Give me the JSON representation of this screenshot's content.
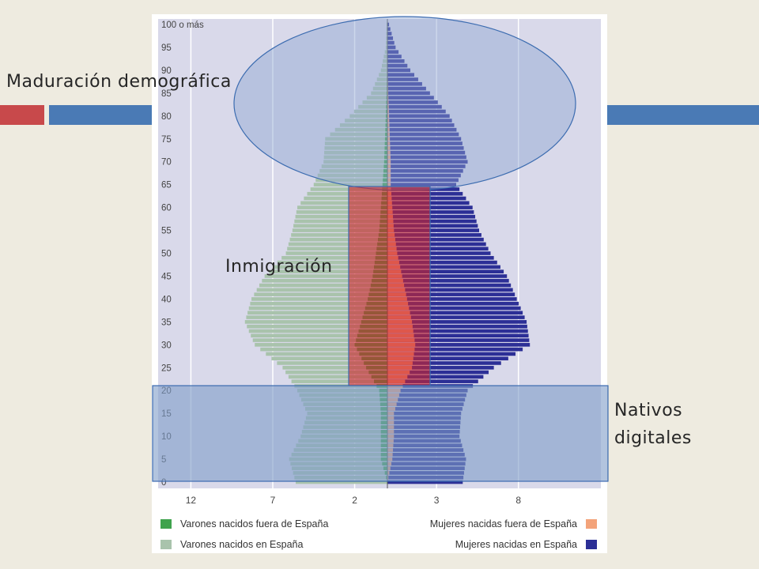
{
  "slide": {
    "accent_left": "#c8494b",
    "accent_right": "#4a7ab5",
    "background": "#eeebe0"
  },
  "callouts": {
    "maduracion": "Maduración demográfica",
    "inmigracion": "Inmigración",
    "nativos_line1": "Nativos",
    "nativos_line2": "digitales"
  },
  "chart_data": {
    "type": "bar",
    "orientation": "horizontal-population-pyramid",
    "title": "",
    "xlabel": "",
    "ylabel": "",
    "grid": true,
    "legend_position": "bottom",
    "x_tick_labels_left": [
      "12",
      "7",
      "2"
    ],
    "x_tick_labels_right": [
      "3",
      "8"
    ],
    "x_ticks_male": [
      12,
      7,
      2
    ],
    "x_ticks_female": [
      3,
      8
    ],
    "x_max_male": 14,
    "x_max_female": 12,
    "y_tick_labels": [
      "100 o más",
      "95",
      "90",
      "85",
      "80",
      "75",
      "70",
      "65",
      "60",
      "55",
      "50",
      "45",
      "40",
      "35",
      "30",
      "25",
      "20",
      "15",
      "10",
      "5",
      "0"
    ],
    "y_ticks": [
      100,
      95,
      90,
      85,
      80,
      75,
      70,
      65,
      60,
      55,
      50,
      45,
      40,
      35,
      30,
      25,
      20,
      15,
      10,
      5,
      0
    ],
    "age_range": [
      0,
      100
    ],
    "bands": [
      {
        "age": 0,
        "men_es": 5.6,
        "men_foreign": 0.0,
        "women_es": 4.6,
        "women_foreign": 0.0
      },
      {
        "age": 5,
        "men_es": 6.0,
        "men_foreign": 0.4,
        "women_es": 4.8,
        "women_foreign": 0.3
      },
      {
        "age": 10,
        "men_es": 5.3,
        "men_foreign": 0.4,
        "women_es": 4.4,
        "women_foreign": 0.4
      },
      {
        "age": 15,
        "men_es": 4.9,
        "men_foreign": 0.4,
        "women_es": 4.5,
        "women_foreign": 0.4
      },
      {
        "age": 20,
        "men_es": 5.5,
        "men_foreign": 0.5,
        "women_es": 4.9,
        "women_foreign": 0.8
      },
      {
        "age": 25,
        "men_es": 6.4,
        "men_foreign": 1.3,
        "women_es": 6.5,
        "women_foreign": 1.5
      },
      {
        "age": 30,
        "men_es": 8.1,
        "men_foreign": 2.0,
        "women_es": 8.7,
        "women_foreign": 1.7
      },
      {
        "age": 35,
        "men_es": 8.7,
        "men_foreign": 1.6,
        "women_es": 8.5,
        "women_foreign": 1.5
      },
      {
        "age": 40,
        "men_es": 8.3,
        "men_foreign": 1.2,
        "women_es": 7.9,
        "women_foreign": 1.2
      },
      {
        "age": 45,
        "men_es": 7.5,
        "men_foreign": 0.9,
        "women_es": 7.3,
        "women_foreign": 0.9
      },
      {
        "age": 50,
        "men_es": 6.2,
        "men_foreign": 0.7,
        "women_es": 6.3,
        "women_foreign": 0.6
      },
      {
        "age": 55,
        "men_es": 5.8,
        "men_foreign": 0.5,
        "women_es": 5.6,
        "women_foreign": 0.4
      },
      {
        "age": 60,
        "men_es": 5.5,
        "men_foreign": 0.4,
        "women_es": 5.2,
        "women_foreign": 0.3
      },
      {
        "age": 65,
        "men_es": 4.5,
        "men_foreign": 0.3,
        "women_es": 4.2,
        "women_foreign": 0.2
      },
      {
        "age": 70,
        "men_es": 3.9,
        "men_foreign": 0.2,
        "women_es": 4.9,
        "women_foreign": 0.2
      },
      {
        "age": 75,
        "men_es": 3.8,
        "men_foreign": 0.15,
        "women_es": 4.5,
        "women_foreign": 0.15
      },
      {
        "age": 80,
        "men_es": 2.3,
        "men_foreign": 0.1,
        "women_es": 3.8,
        "women_foreign": 0.1
      },
      {
        "age": 85,
        "men_es": 1.0,
        "men_foreign": 0.05,
        "women_es": 2.6,
        "women_foreign": 0.05
      },
      {
        "age": 90,
        "men_es": 0.4,
        "men_foreign": 0.02,
        "women_es": 1.4,
        "women_foreign": 0.02
      },
      {
        "age": 95,
        "men_es": 0.1,
        "men_foreign": 0.0,
        "women_es": 0.5,
        "women_foreign": 0.0
      },
      {
        "age": 100,
        "men_es": 0.05,
        "men_foreign": 0.0,
        "women_es": 0.1,
        "women_foreign": 0.0
      }
    ],
    "series": [
      {
        "name": "Varones nacidos fuera de España",
        "color": "#3fa34d"
      },
      {
        "name": "Mujeres nacidas fuera de España",
        "color": "#f3a37a"
      },
      {
        "name": "Varones nacidos en España",
        "color": "#a9c3ac"
      },
      {
        "name": "Mujeres nacidas en España",
        "color": "#2c2f96"
      }
    ],
    "annotations": [
      {
        "label": "Maduración demográfica",
        "shape": "ellipse",
        "age_range": [
          66,
          100
        ]
      },
      {
        "label": "Inmigración",
        "shape": "rectangle",
        "age_range": [
          21,
          64
        ]
      },
      {
        "label": "Nativos digitales",
        "shape": "rectangle",
        "age_range": [
          0,
          21
        ]
      }
    ]
  }
}
